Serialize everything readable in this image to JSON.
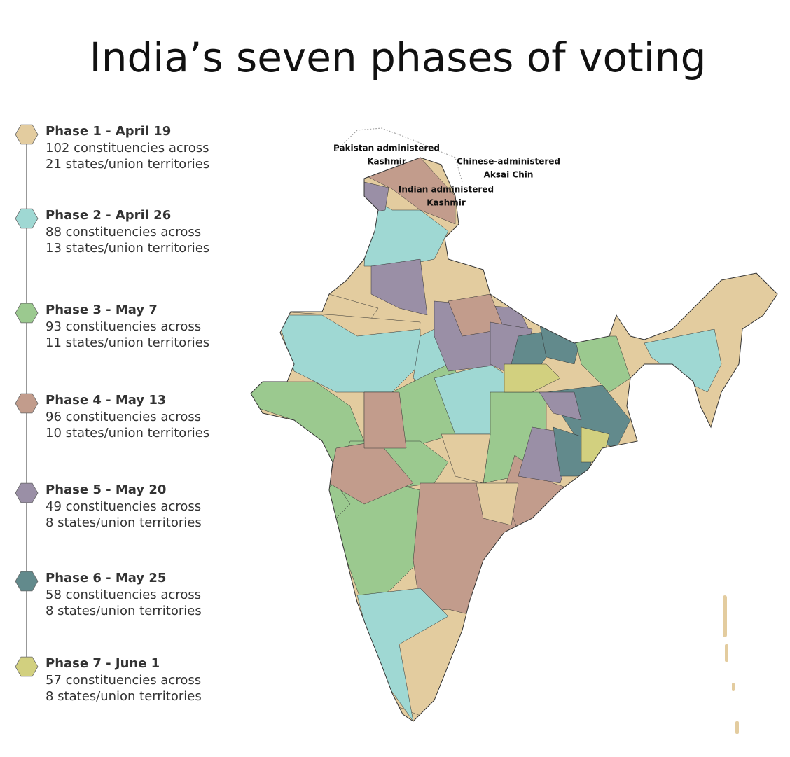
{
  "title": "India’s  seven phases of voting",
  "phases": [
    {
      "name": "Phase 1 - April 19",
      "line1": "102 constituencies across",
      "line2": "21 states/union territories",
      "color": "#e3cc9f"
    },
    {
      "name": "Phase 2 - April 26",
      "line1": "88 constituencies across",
      "line2": "13 states/union territories",
      "color": "#9fd8d3"
    },
    {
      "name": "Phase 3 - May 7",
      "line1": "93 constituencies across",
      "line2": "11 states/union territories",
      "color": "#9bc98f"
    },
    {
      "name": "Phase 4 - May 13",
      "line1": "96 constituencies across",
      "line2": "10 states/union territories",
      "color": "#c29c8c"
    },
    {
      "name": "Phase 5 - May 20",
      "line1": "49 constituencies across",
      "line2": "8 states/union territories",
      "color": "#9a8fa6"
    },
    {
      "name": "Phase 6 - May 25",
      "line1": "58 constituencies across",
      "line2": "8 states/union territories",
      "color": "#628a8c"
    },
    {
      "name": "Phase 7 - June 1",
      "line1": "57 constituencies across",
      "line2": "8 states/union territories",
      "color": "#d2d07f"
    }
  ],
  "map_labels": [
    {
      "lines": [
        "Pakistan administered",
        "Kashmir"
      ]
    },
    {
      "lines": [
        "Chinese-administered",
        "Aksai Chin"
      ]
    },
    {
      "lines": [
        "Indian administered",
        "Kashmir"
      ]
    }
  ]
}
